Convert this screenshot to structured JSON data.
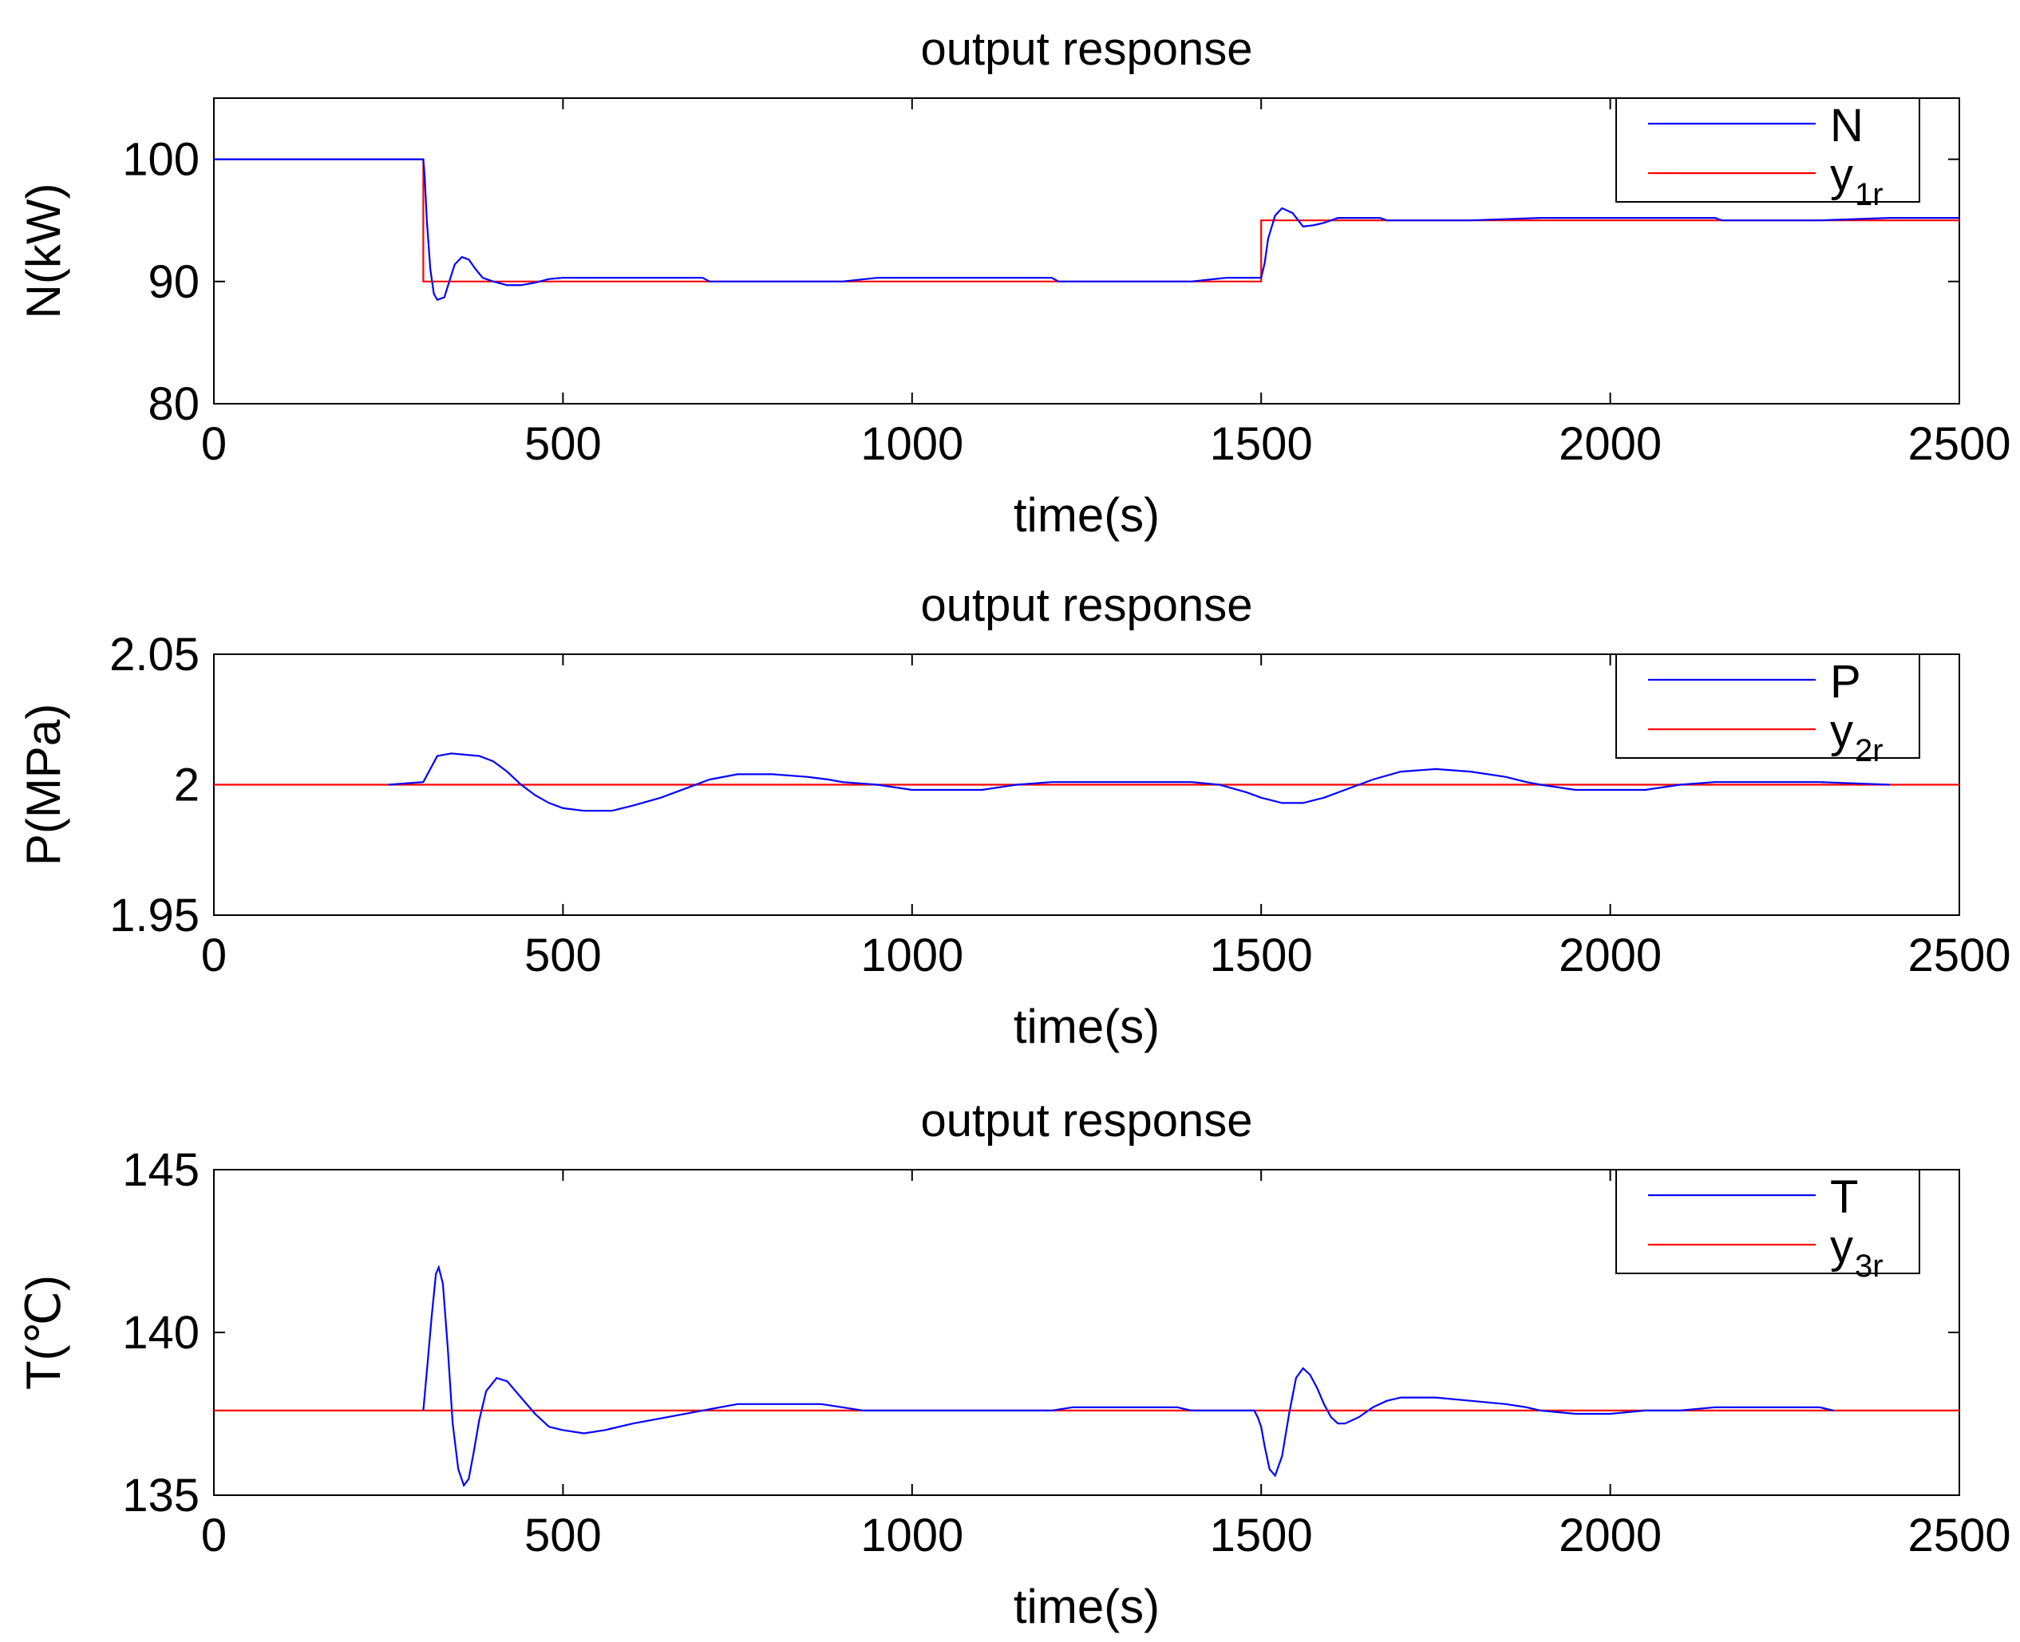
{
  "chart_data": [
    {
      "type": "line",
      "title": "output response",
      "xlabel": "time(s)",
      "ylabel": "N(kW)",
      "xlim": [
        0,
        2500
      ],
      "ylim": [
        80,
        105
      ],
      "xticks": [
        0,
        500,
        1000,
        1500,
        2000,
        2500
      ],
      "xtick_labels": [
        "0",
        "500",
        "1000",
        "1500",
        "2000",
        "2500"
      ],
      "yticks": [
        80,
        90,
        100
      ],
      "ytick_labels": [
        "80",
        "90",
        "100"
      ],
      "grid": false,
      "legend_position": "top-right",
      "series": [
        {
          "name": "N",
          "legend_main": "N",
          "legend_sub": "",
          "color": "#0000ff",
          "x": [
            0,
            300,
            302,
            305,
            310,
            315,
            320,
            330,
            340,
            345,
            355,
            365,
            375,
            385,
            400,
            420,
            440,
            460,
            480,
            500,
            600,
            700,
            710,
            900,
            950,
            1000,
            1100,
            1200,
            1210,
            1400,
            1450,
            1480,
            1500,
            1505,
            1510,
            1520,
            1530,
            1545,
            1560,
            1575,
            1590,
            1610,
            1640,
            1670,
            1680,
            1800,
            1900,
            2000,
            2100,
            2150,
            2160,
            2300,
            2400,
            2500
          ],
          "y": [
            100,
            100,
            98.5,
            95,
            91,
            89,
            88.5,
            88.7,
            90.5,
            91.4,
            92,
            91.8,
            91,
            90.3,
            90,
            89.7,
            89.7,
            89.9,
            90.2,
            90.3,
            90.3,
            90.3,
            90,
            90,
            90.3,
            90.3,
            90.3,
            90.3,
            90,
            90,
            90.3,
            90.3,
            90.3,
            91.5,
            93.5,
            95.4,
            96,
            95.6,
            94.5,
            94.6,
            94.8,
            95.2,
            95.2,
            95.2,
            95,
            95,
            95.2,
            95.2,
            95.2,
            95.2,
            95,
            95,
            95.2,
            95.2
          ]
        },
        {
          "name": "y1r",
          "legend_main": "y",
          "legend_sub": "1r",
          "color": "#ff0000",
          "x": [
            0,
            300,
            300,
            1500,
            1500,
            2500
          ],
          "y": [
            100,
            100,
            90,
            90,
            95,
            95
          ]
        }
      ]
    },
    {
      "type": "line",
      "title": "output response",
      "xlabel": "time(s)",
      "ylabel": "P(MPa)",
      "xlim": [
        0,
        2500
      ],
      "ylim": [
        1.95,
        2.05
      ],
      "xticks": [
        0,
        500,
        1000,
        1500,
        2000,
        2500
      ],
      "xtick_labels": [
        "0",
        "500",
        "1000",
        "1500",
        "2000",
        "2500"
      ],
      "yticks": [
        1.95,
        2,
        2.05
      ],
      "ytick_labels": [
        "1.95",
        "2",
        "2.05"
      ],
      "grid": false,
      "legend_position": "top-right",
      "series": [
        {
          "name": "P",
          "legend_main": "P",
          "legend_sub": "",
          "color": "#0000ff",
          "x": [
            250,
            300,
            320,
            340,
            380,
            400,
            420,
            440,
            460,
            480,
            500,
            530,
            570,
            600,
            640,
            680,
            710,
            750,
            800,
            850,
            880,
            900,
            950,
            1000,
            1050,
            1100,
            1150,
            1200,
            1300,
            1400,
            1440,
            1480,
            1500,
            1530,
            1560,
            1590,
            1620,
            1660,
            1700,
            1750,
            1800,
            1850,
            1880,
            1900,
            1950,
            2000,
            2050,
            2100,
            2150,
            2200,
            2300,
            2400
          ],
          "y": [
            2.0,
            2.001,
            2.011,
            2.012,
            2.011,
            2.009,
            2.005,
            2.0,
            1.996,
            1.993,
            1.991,
            1.99,
            1.99,
            1.992,
            1.995,
            1.999,
            2.002,
            2.004,
            2.004,
            2.003,
            2.002,
            2.001,
            2.0,
            1.998,
            1.998,
            1.998,
            2.0,
            2.001,
            2.001,
            2.001,
            2.0,
            1.997,
            1.995,
            1.993,
            1.993,
            1.995,
            1.998,
            2.002,
            2.005,
            2.006,
            2.005,
            2.003,
            2.001,
            2.0,
            1.998,
            1.998,
            1.998,
            2.0,
            2.001,
            2.001,
            2.001,
            2.0
          ]
        },
        {
          "name": "y2r",
          "legend_main": "y",
          "legend_sub": "2r",
          "color": "#ff0000",
          "x": [
            0,
            2500
          ],
          "y": [
            2.0,
            2.0
          ]
        }
      ]
    },
    {
      "type": "line",
      "title": "output response",
      "xlabel": "time(s)",
      "ylabel": "T(℃)",
      "xlim": [
        0,
        2500
      ],
      "ylim": [
        135,
        145
      ],
      "xticks": [
        0,
        500,
        1000,
        1500,
        2000,
        2500
      ],
      "xtick_labels": [
        "0",
        "500",
        "1000",
        "1500",
        "2000",
        "2500"
      ],
      "yticks": [
        135,
        140,
        145
      ],
      "ytick_labels": [
        "135",
        "140",
        "145"
      ],
      "grid": false,
      "legend_position": "top-right",
      "series": [
        {
          "name": "T",
          "legend_main": "T",
          "legend_sub": "",
          "color": "#0000ff",
          "x": [
            300,
            305,
            312,
            318,
            322,
            328,
            335,
            342,
            350,
            358,
            365,
            372,
            380,
            390,
            405,
            420,
            440,
            460,
            480,
            500,
            530,
            560,
            600,
            650,
            700,
            750,
            800,
            870,
            900,
            930,
            1000,
            1100,
            1200,
            1230,
            1300,
            1380,
            1400,
            1490,
            1495,
            1500,
            1505,
            1512,
            1520,
            1530,
            1540,
            1550,
            1560,
            1570,
            1580,
            1590,
            1600,
            1610,
            1620,
            1640,
            1660,
            1680,
            1700,
            1750,
            1800,
            1850,
            1880,
            1900,
            1950,
            2000,
            2050,
            2100,
            2150,
            2200,
            2300,
            2320
          ],
          "y": [
            137.6,
            138.8,
            140.5,
            141.8,
            142,
            141.5,
            139.5,
            137.2,
            135.8,
            135.3,
            135.5,
            136.3,
            137.3,
            138.2,
            138.6,
            138.5,
            138,
            137.5,
            137.1,
            137,
            136.9,
            137,
            137.2,
            137.4,
            137.6,
            137.8,
            137.8,
            137.8,
            137.7,
            137.6,
            137.6,
            137.6,
            137.6,
            137.7,
            137.7,
            137.7,
            137.6,
            137.6,
            137.4,
            137.1,
            136.5,
            135.8,
            135.6,
            136.2,
            137.5,
            138.6,
            138.9,
            138.7,
            138.3,
            137.8,
            137.4,
            137.2,
            137.2,
            137.4,
            137.7,
            137.9,
            138,
            138,
            137.9,
            137.8,
            137.7,
            137.6,
            137.5,
            137.5,
            137.6,
            137.6,
            137.7,
            137.7,
            137.7,
            137.6
          ]
        },
        {
          "name": "y3r",
          "legend_main": "y",
          "legend_sub": "3r",
          "color": "#ff0000",
          "x": [
            0,
            2500
          ],
          "y": [
            137.6,
            137.6
          ]
        }
      ]
    }
  ]
}
